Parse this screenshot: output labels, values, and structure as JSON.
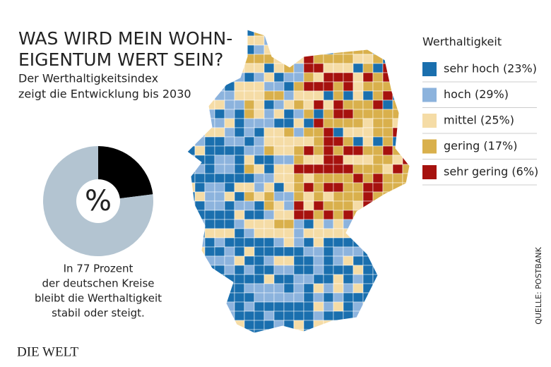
{
  "header": {
    "title_lines": [
      "WAS WIRD MEIN WOHN-",
      "EIGENTUM WERT SEIN?"
    ],
    "subtitle_lines": [
      "Der Werthaltigkeitsindex",
      "zeigt die Entwicklung bis 2030"
    ]
  },
  "legend": {
    "title": "Werthaltigkeit",
    "items": [
      {
        "label": "sehr hoch (23%)",
        "color": "#1a6fae"
      },
      {
        "label": "hoch (29%)",
        "color": "#8cb3dd"
      },
      {
        "label": "mittel (25%)",
        "color": "#f5dca6"
      },
      {
        "label": "gering (17%)",
        "color": "#d9b04c"
      },
      {
        "label": "sehr gering (6%)",
        "color": "#a6120e"
      }
    ]
  },
  "chart_data": {
    "type": "pie",
    "values": [
      23,
      77
    ],
    "colors": [
      "#000000",
      "#b3c4d1"
    ],
    "center_label": "%"
  },
  "annotation_lines": [
    "In 77 Prozent",
    "der deutschen Kreise",
    "bleibt die Werthaltigkeit",
    "stabil oder steigt."
  ],
  "source": "QUELLE: POSTBANK",
  "logo": "DIE WELT"
}
